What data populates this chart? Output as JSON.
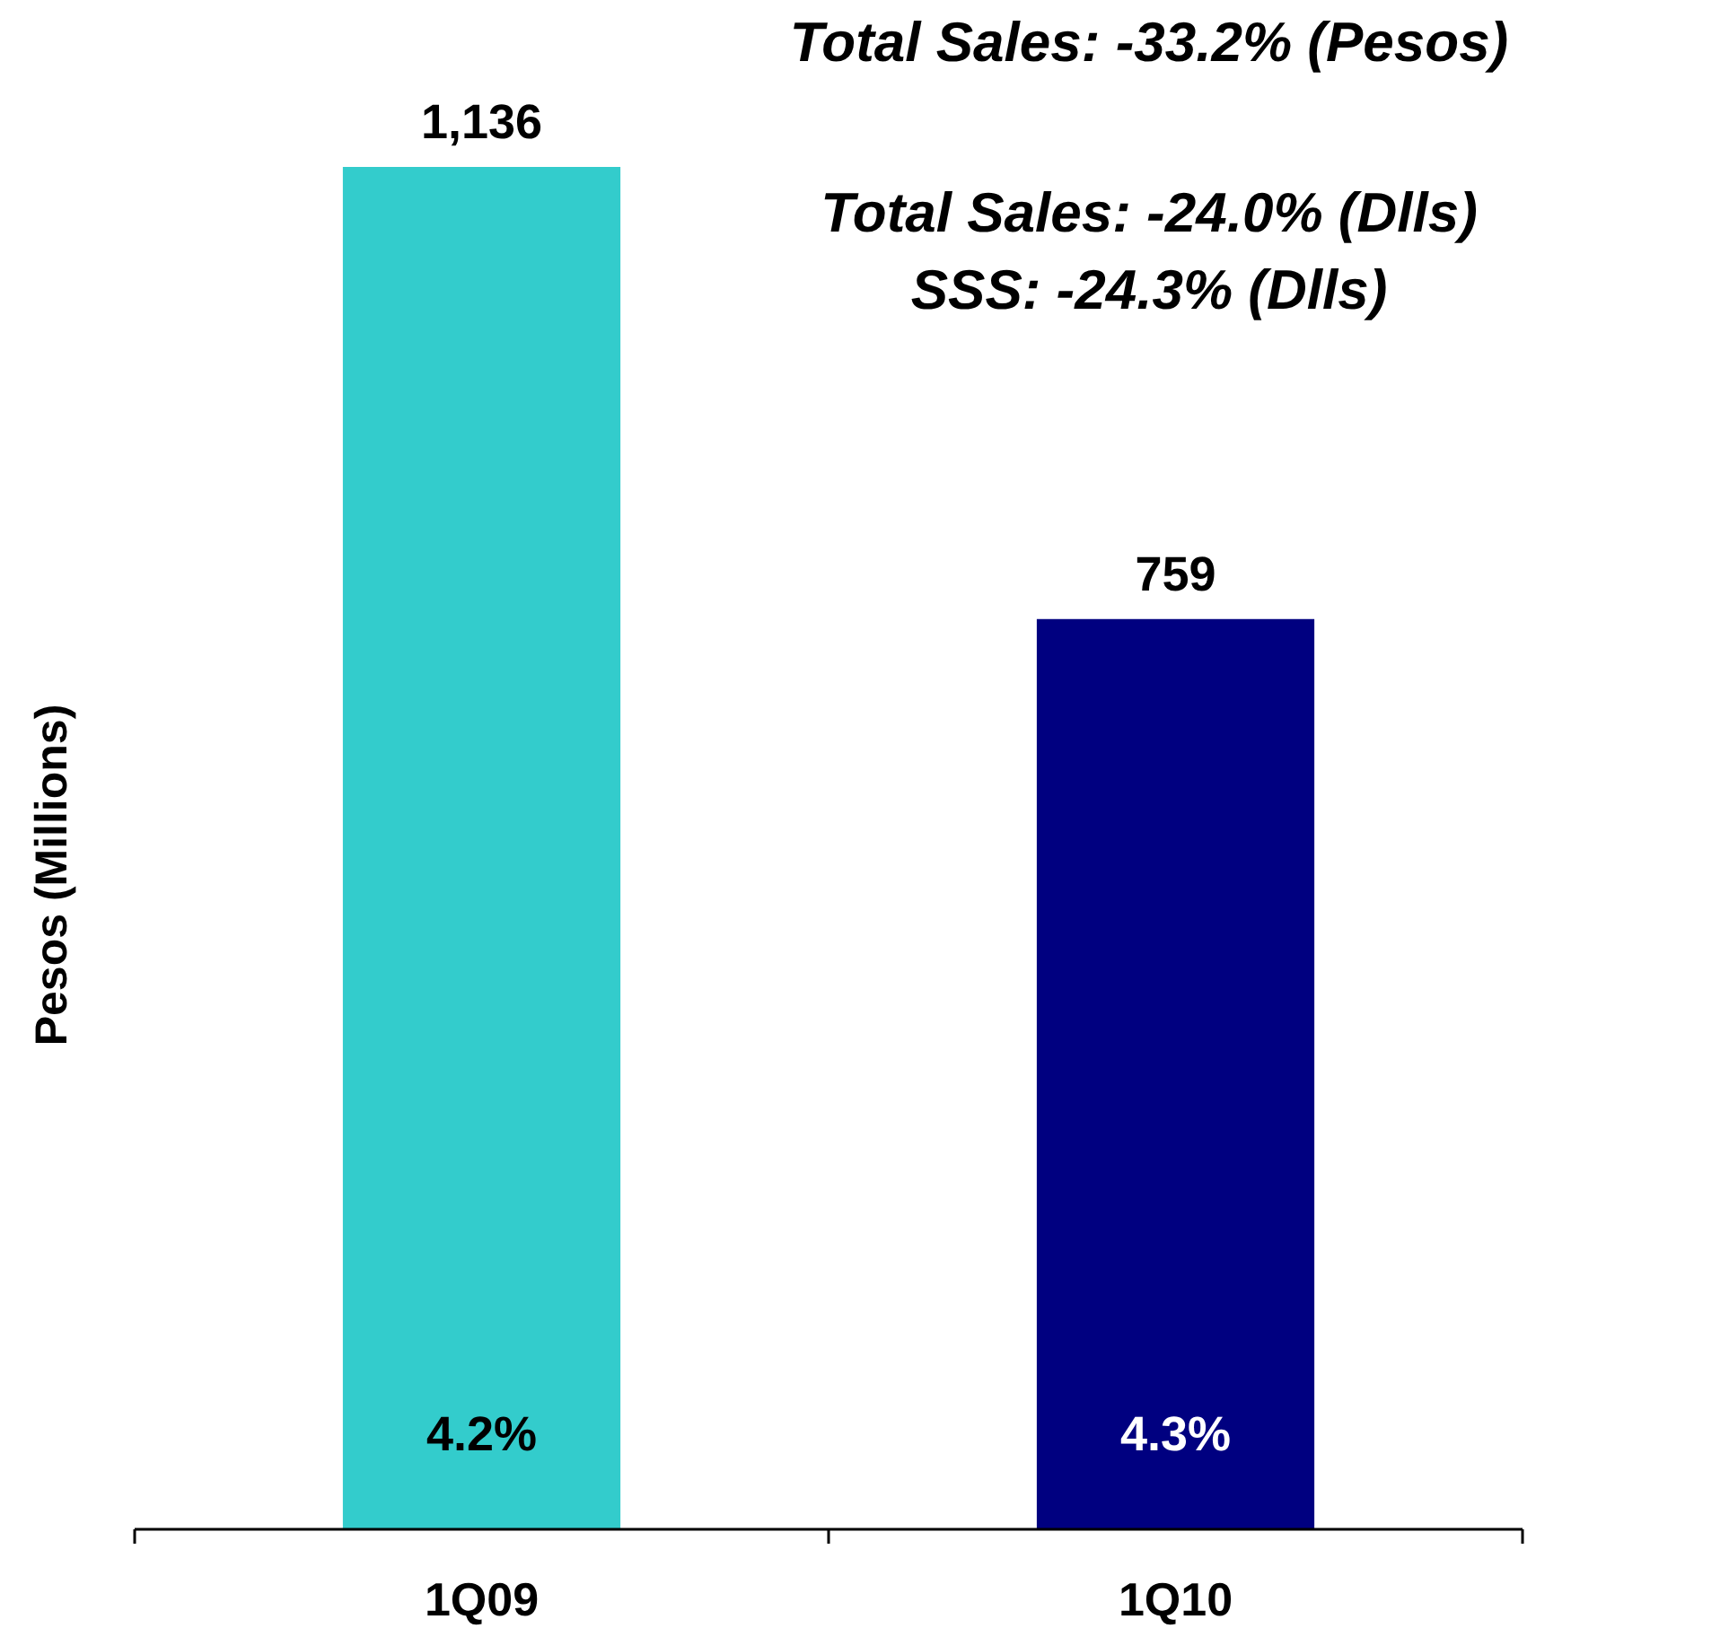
{
  "chart_data": {
    "type": "bar",
    "ylabel": "Pesos (Millions)",
    "categories": [
      "1Q09",
      "1Q10"
    ],
    "values": [
      1136,
      759
    ],
    "colors": [
      "#33cccc",
      "#000080"
    ],
    "value_labels": [
      "1,136",
      "759"
    ],
    "annotations": [
      "Total Sales: -33.2% (Pesos)",
      "Total Sales: -24.0% (Dlls)",
      "SSS: -24.3% (Dlls)",
      "4.2%",
      "4.3%"
    ]
  }
}
